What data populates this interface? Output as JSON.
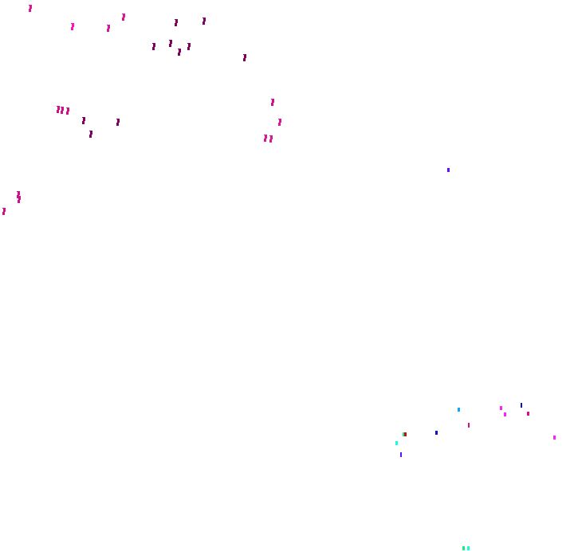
{
  "background": "#ffffff",
  "palette": {
    "pink": "#d81896",
    "bright_pink": "#ff10c8",
    "dark_magenta": "#800060",
    "magenta": "#ff20ff",
    "blue": "#1010c0",
    "sky": "#10a8ff",
    "green": "#10f080",
    "red": "#c01010",
    "cyan": "#10ffe0",
    "violet": "#6010ff",
    "rose": "#d0108a"
  }
}
